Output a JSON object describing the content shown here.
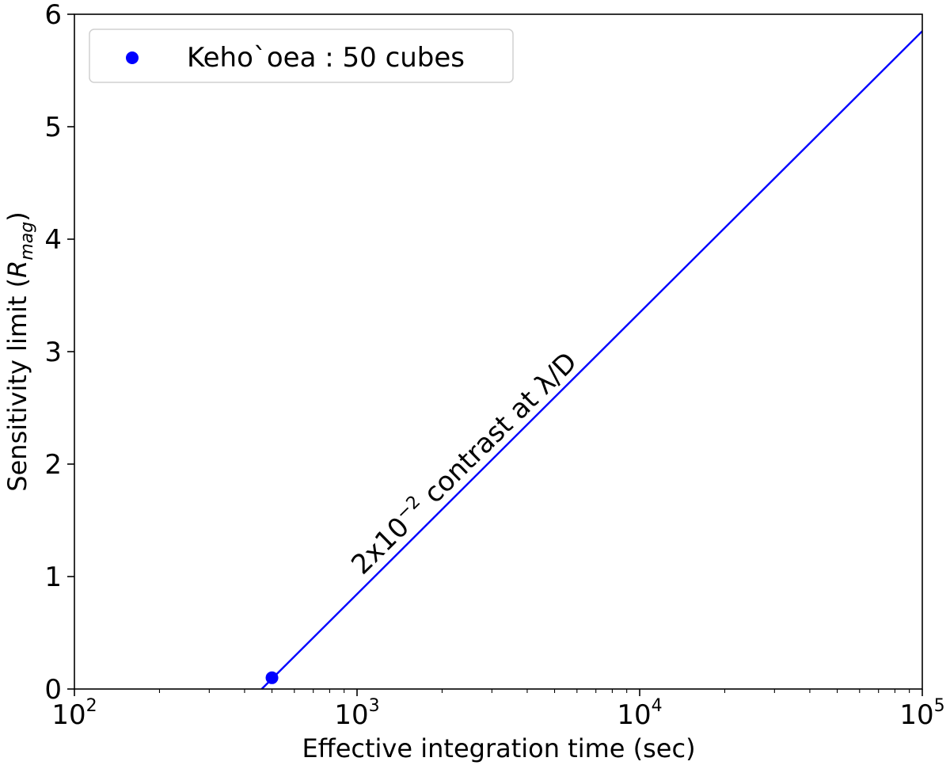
{
  "chart_data": {
    "type": "line",
    "xscale": "log",
    "xlim": [
      100,
      100000
    ],
    "ylim": [
      0,
      6
    ],
    "xlabel": "Effective integration time (sec)",
    "ylabel_main": "Sensitivity limit (",
    "ylabel_sym": "R",
    "ylabel_sub": "mag",
    "ylabel_close": ")",
    "x_ticks": [
      {
        "value": 100,
        "base": "10",
        "exp": "2"
      },
      {
        "value": 1000,
        "base": "10",
        "exp": "3"
      },
      {
        "value": 10000,
        "base": "10",
        "exp": "4"
      },
      {
        "value": 100000,
        "base": "10",
        "exp": "5"
      }
    ],
    "y_ticks": [
      {
        "value": 0,
        "label": "0"
      },
      {
        "value": 1,
        "label": "1"
      },
      {
        "value": 2,
        "label": "2"
      },
      {
        "value": 3,
        "label": "3"
      },
      {
        "value": 4,
        "label": "4"
      },
      {
        "value": 5,
        "label": "5"
      },
      {
        "value": 6,
        "label": "6"
      }
    ],
    "series": [
      {
        "kind": "line",
        "color": "#0000ff",
        "x": [
          460,
          100000
        ],
        "y": [
          0,
          5.85
        ]
      },
      {
        "name": "Keho`oea : 50 cubes",
        "kind": "scatter",
        "color": "#0000ff",
        "x": [
          500
        ],
        "y": [
          0.1
        ]
      }
    ],
    "legend": {
      "position": "upper-left",
      "entries": [
        "Keho`oea : 50 cubes"
      ]
    },
    "annotation": {
      "text_main": "2x10",
      "text_exp": "−2",
      "text_rest": " contrast at λ/D"
    },
    "grid": false
  }
}
